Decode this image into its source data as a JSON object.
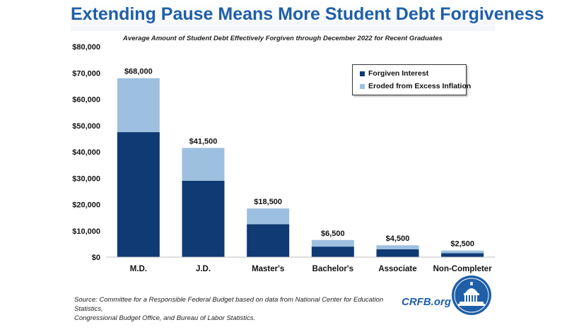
{
  "title": "Extending Pause Means More Student Debt Forgiveness",
  "subtitle": "Average Amount of Student Debt Effectively Forgiven through December 2022 for Recent Graduates",
  "colors": {
    "title": "#1f5fa8",
    "forgiven_interest": "#0f3a73",
    "eroded_inflation": "#9ec0e0",
    "crfb": "#1f5fa8"
  },
  "chart_data": {
    "type": "bar",
    "stacked": true,
    "categories": [
      "M.D.",
      "J.D.",
      "Master's",
      "Bachelor's",
      "Associate",
      "Non-Completer"
    ],
    "series": [
      {
        "name": "Forgiven Interest",
        "values": [
          47500,
          29000,
          12500,
          4000,
          3000,
          1500
        ]
      },
      {
        "name": "Eroded from Excess Inflation",
        "values": [
          20500,
          12500,
          6000,
          2500,
          1500,
          1000
        ]
      }
    ],
    "totals": [
      68000,
      41500,
      18500,
      6500,
      4500,
      2500
    ],
    "total_labels": [
      "$68,000",
      "$41,500",
      "$18,500",
      "$6,500",
      "$4,500",
      "$2,500"
    ],
    "y_ticks": [
      0,
      10000,
      20000,
      30000,
      40000,
      50000,
      60000,
      70000,
      80000
    ],
    "y_tick_labels": [
      "$0",
      "$10,000",
      "$20,000",
      "$30,000",
      "$40,000",
      "$50,000",
      "$60,000",
      "$70,000",
      "$80,000"
    ],
    "ylim": [
      0,
      80000
    ],
    "grid": false,
    "legend_position": "top-right"
  },
  "legend": {
    "items": [
      {
        "label": "Forgiven Interest"
      },
      {
        "label": "Eroded from Excess Inflation"
      }
    ]
  },
  "source": {
    "line1": "Source: Committee for a Responsible Federal Budget based on data from National Center for Education Statistics,",
    "line2": "Congressional Budget Office, and Bureau of Labor Statistics."
  },
  "brand": "CRFB.org",
  "logo_icon": "capitol-dome-seal-icon"
}
